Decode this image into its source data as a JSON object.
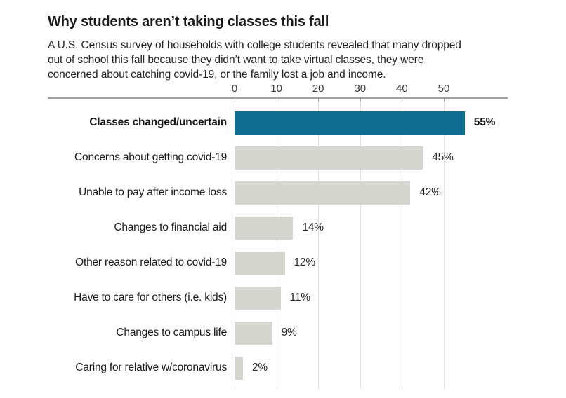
{
  "header": {
    "title": "Why students aren’t taking classes this fall",
    "subtitle_lines": [
      "A U.S. Census survey of households with college students revealed that many dropped",
      "out of school this fall because they didn’t want to take virtual classes, they were",
      "concerned about catching covid-19, or the family lost a job and income."
    ]
  },
  "chart_data": {
    "type": "bar",
    "orientation": "horizontal",
    "title": "Why students aren’t taking classes this fall",
    "categories": [
      "Classes changed/uncertain",
      "Concerns about getting covid-19",
      "Unable to pay after income loss",
      "Changes to financial aid",
      "Other reason related to covid-19",
      "Have to care for others (i.e. kids)",
      "Changes to campus life",
      "Caring for relative w/coronavirus"
    ],
    "values": [
      55,
      45,
      42,
      14,
      12,
      11,
      9,
      2
    ],
    "value_labels": [
      "55%",
      "45%",
      "42%",
      "14%",
      "12%",
      "11%",
      "9%",
      "2%"
    ],
    "highlight_index": 0,
    "axis": {
      "ticks": [
        0,
        10,
        20,
        30,
        40,
        50
      ],
      "tick_labels": [
        "0",
        "10",
        "20",
        "30",
        "40",
        "50"
      ],
      "xlim": [
        0,
        65
      ],
      "grid": true,
      "axis_side": "top"
    },
    "legend": null,
    "colors": {
      "highlight_bar": "#0f6d8f",
      "bar": "#d6d6d1",
      "axis_line": "#a0a0a0",
      "tick_stub": "#a8a8a8",
      "gridline": "#e1e1de",
      "title_text": "#1a1a1a",
      "subtitle_text": "#232323",
      "tick_text": "#3d3d3d",
      "label_text": "#1a1a1a"
    }
  }
}
